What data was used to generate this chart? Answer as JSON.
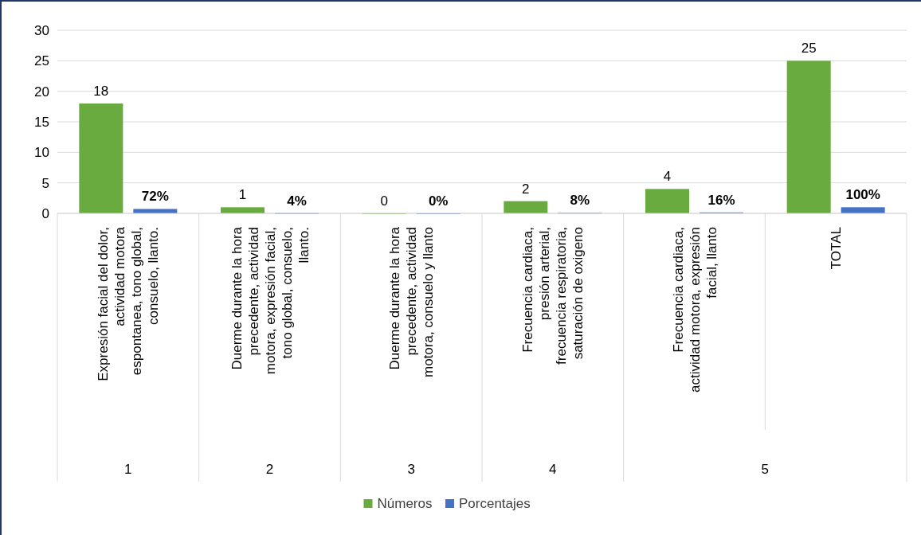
{
  "chart_data": {
    "type": "bar",
    "categories": [
      "Expresión facial del dolor, actividad motora espontanea, tono global, consuelo, llanto.",
      "Duerme durante la hora precedente, actividad motora, expresión facial, tono global, consuelo, llanto.",
      "Duerme durante la hora precedente, actividad motora, consuelo  y llanto",
      "Frecuencia cardiaca, presión arterial, frecuencia respiratoria, saturación de oxigeno",
      "Frecuencia cardiaca, actividad motora, expresión facial, llanto",
      "TOTAL"
    ],
    "series": [
      {
        "name": "Números",
        "color": "#6aab3f",
        "values": [
          18,
          1,
          0,
          2,
          4,
          25
        ],
        "value_labels": [
          "18",
          "1",
          "0",
          "2",
          "4",
          "25"
        ]
      },
      {
        "name": "Porcentajes",
        "color": "#4472c4",
        "values": [
          0.72,
          0.04,
          0,
          0.08,
          0.16,
          1
        ],
        "value_labels": [
          "72%",
          "4%",
          "0%",
          "8%",
          "16%",
          "100%"
        ]
      }
    ],
    "annotations": [
      "1",
      "2",
      "3",
      "4",
      "5"
    ],
    "ylim": [
      0,
      30
    ],
    "yticks": [
      0,
      5,
      10,
      15,
      20,
      25,
      30
    ],
    "grid": "y",
    "legend": "bottom"
  }
}
